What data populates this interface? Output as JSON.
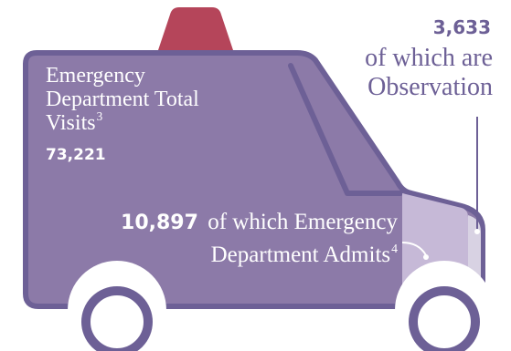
{
  "colors": {
    "van_body": "#8c7aa8",
    "van_outline": "#6d6096",
    "siren": "#b5455a",
    "hood": "#c6b9d7",
    "bumper": "#d8d2e3",
    "text_on_van": "#ffffff",
    "callout_text": "#6d6096"
  },
  "icons": {
    "vehicle": "ambulance-van-icon",
    "siren": "siren-light-icon"
  },
  "total_visits": {
    "label": "Emergency Department Total Visits",
    "footnote": "3",
    "value": "73,221"
  },
  "observation": {
    "value": "3,633",
    "label": "of which are Observation"
  },
  "admits": {
    "value": "10,897",
    "label_line1": "of which Emergency",
    "label_line2": "Department Admits",
    "footnote": "4"
  }
}
